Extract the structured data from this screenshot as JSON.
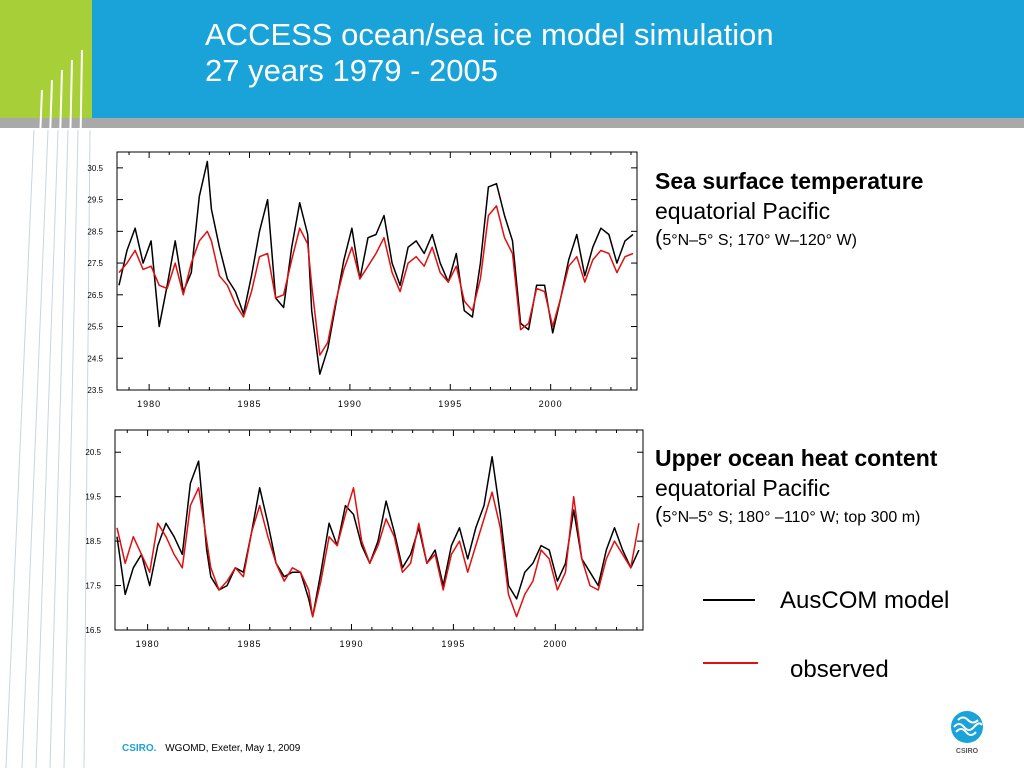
{
  "header": {
    "title_line1": "ACCESS ocean/sea ice model simulation",
    "title_line2": "27 years 1979 - 2005",
    "colors": {
      "blue": "#1aa3d8",
      "green": "#a6cf38"
    }
  },
  "panels": [
    {
      "title": "Sea surface temperature",
      "subtitle": "equatorial Pacific",
      "region_open": "(",
      "region": "5°N–5° S;  170° W–120° W",
      "region_close": ")"
    },
    {
      "title": "Upper ocean heat content",
      "subtitle": "equatorial Pacific",
      "region_open": "(",
      "region": "5°N–5° S;  180° –110° W; top 300 m)",
      "region_close": ""
    }
  ],
  "legend": {
    "model_label": "AusCOM model",
    "observed_label": "observed",
    "model_color": "#000000",
    "observed_color": "#e01010"
  },
  "footer": {
    "brand": "CSIRO.",
    "text": "WGOMD, Exeter, May 1, 2009"
  },
  "logo": {
    "text": "CSIRO",
    "icon": "csiro-logo-icon"
  },
  "chart_data": [
    {
      "type": "line",
      "title": "",
      "xlabel": "",
      "ylabel": "",
      "xlim": [
        1978.4,
        2004.3
      ],
      "ylim": [
        23.5,
        31.0
      ],
      "yticks": [
        23.5,
        24.5,
        25.5,
        26.5,
        27.5,
        28.5,
        29.5,
        30.5
      ],
      "ytick_labels": [
        "23.5",
        "24.5",
        "25.5",
        "26.5",
        "27.5",
        "28.5",
        "29.5",
        "30.5"
      ],
      "xticks": [
        1980,
        1985,
        1990,
        1995,
        2000
      ],
      "xtick_labels": [
        "1980",
        "1985",
        "1990",
        "1995",
        "2000"
      ],
      "grid": false,
      "series": [
        {
          "name": "AusCOM model",
          "color": "#000000",
          "x": [
            1978.5,
            1978.9,
            1979.3,
            1979.7,
            1980.1,
            1980.5,
            1980.9,
            1981.3,
            1981.7,
            1982.1,
            1982.5,
            1982.9,
            1983.1,
            1983.5,
            1983.9,
            1984.3,
            1984.7,
            1985.1,
            1985.5,
            1985.9,
            1986.3,
            1986.7,
            1987.1,
            1987.5,
            1987.9,
            1988.1,
            1988.5,
            1988.9,
            1989.3,
            1989.7,
            1990.1,
            1990.5,
            1990.9,
            1991.3,
            1991.7,
            1992.1,
            1992.5,
            1992.9,
            1993.3,
            1993.7,
            1994.1,
            1994.5,
            1994.9,
            1995.3,
            1995.7,
            1996.1,
            1996.5,
            1996.9,
            1997.3,
            1997.7,
            1998.1,
            1998.5,
            1998.9,
            1999.3,
            1999.7,
            2000.1,
            2000.5,
            2000.9,
            2001.3,
            2001.7,
            2002.1,
            2002.5,
            2002.9,
            2003.3,
            2003.7,
            2004.1
          ],
          "y": [
            26.8,
            27.9,
            28.6,
            27.5,
            28.2,
            25.5,
            26.8,
            28.2,
            26.6,
            27.2,
            29.6,
            30.7,
            29.2,
            28.0,
            27.0,
            26.6,
            25.9,
            27.1,
            28.5,
            29.5,
            26.4,
            26.1,
            28.0,
            29.4,
            28.4,
            26.0,
            24.0,
            24.8,
            26.2,
            27.6,
            28.6,
            27.0,
            28.3,
            28.4,
            29.0,
            27.5,
            26.8,
            28.0,
            28.2,
            27.8,
            28.4,
            27.5,
            26.9,
            27.8,
            26.0,
            25.8,
            27.5,
            29.9,
            30.0,
            29.0,
            28.2,
            25.6,
            25.4,
            26.8,
            26.8,
            25.3,
            26.4,
            27.6,
            28.4,
            27.1,
            28.0,
            28.6,
            28.4,
            27.5,
            28.2,
            28.4
          ]
        },
        {
          "name": "observed",
          "color": "#e01010",
          "x": [
            1978.5,
            1978.9,
            1979.3,
            1979.7,
            1980.1,
            1980.5,
            1980.9,
            1981.3,
            1981.7,
            1982.1,
            1982.5,
            1982.9,
            1983.1,
            1983.5,
            1983.9,
            1984.3,
            1984.7,
            1985.1,
            1985.5,
            1985.9,
            1986.3,
            1986.7,
            1987.1,
            1987.5,
            1987.9,
            1988.1,
            1988.5,
            1988.9,
            1989.3,
            1989.7,
            1990.1,
            1990.5,
            1990.9,
            1991.3,
            1991.7,
            1992.1,
            1992.5,
            1992.9,
            1993.3,
            1993.7,
            1994.1,
            1994.5,
            1994.9,
            1995.3,
            1995.7,
            1996.1,
            1996.5,
            1996.9,
            1997.3,
            1997.7,
            1998.1,
            1998.5,
            1998.9,
            1999.3,
            1999.7,
            2000.1,
            2000.5,
            2000.9,
            2001.3,
            2001.7,
            2002.1,
            2002.5,
            2002.9,
            2003.3,
            2003.7,
            2004.1
          ],
          "y": [
            27.2,
            27.5,
            27.9,
            27.3,
            27.4,
            26.8,
            26.7,
            27.5,
            26.5,
            27.5,
            28.2,
            28.5,
            28.2,
            27.1,
            26.8,
            26.2,
            25.8,
            26.6,
            27.7,
            27.8,
            26.4,
            26.5,
            27.6,
            28.6,
            28.1,
            26.8,
            24.6,
            25.0,
            26.3,
            27.3,
            28.0,
            27.0,
            27.4,
            27.8,
            28.3,
            27.2,
            26.6,
            27.5,
            27.7,
            27.4,
            28.0,
            27.2,
            26.9,
            27.4,
            26.3,
            26.0,
            27.0,
            29.0,
            29.3,
            28.3,
            27.8,
            25.4,
            25.6,
            26.7,
            26.6,
            25.5,
            26.4,
            27.4,
            27.7,
            26.9,
            27.6,
            27.9,
            27.8,
            27.2,
            27.7,
            27.8
          ]
        }
      ]
    },
    {
      "type": "line",
      "title": "",
      "xlabel": "",
      "ylabel": "",
      "xlim": [
        1978.4,
        2004.3
      ],
      "ylim": [
        16.5,
        21.0
      ],
      "yticks": [
        16.5,
        17.5,
        18.5,
        19.5,
        20.5
      ],
      "ytick_labels": [
        "16.5",
        "17.5",
        "18.5",
        "19.5",
        "20.5"
      ],
      "xticks": [
        1980,
        1985,
        1990,
        1995,
        2000
      ],
      "xtick_labels": [
        "1980",
        "1985",
        "1990",
        "1995",
        "2000"
      ],
      "grid": false,
      "series": [
        {
          "name": "AusCOM model",
          "color": "#000000",
          "x": [
            1978.5,
            1978.9,
            1979.3,
            1979.7,
            1980.1,
            1980.5,
            1980.9,
            1981.3,
            1981.7,
            1982.1,
            1982.5,
            1982.9,
            1983.1,
            1983.5,
            1983.9,
            1984.3,
            1984.7,
            1985.1,
            1985.5,
            1985.9,
            1986.3,
            1986.7,
            1987.1,
            1987.5,
            1987.9,
            1988.1,
            1988.5,
            1988.9,
            1989.3,
            1989.7,
            1990.1,
            1990.5,
            1990.9,
            1991.3,
            1991.7,
            1992.1,
            1992.5,
            1992.9,
            1993.3,
            1993.7,
            1994.1,
            1994.5,
            1994.9,
            1995.3,
            1995.7,
            1996.1,
            1996.5,
            1996.9,
            1997.3,
            1997.7,
            1998.1,
            1998.5,
            1998.9,
            1999.3,
            1999.7,
            2000.1,
            2000.5,
            2000.9,
            2001.3,
            2001.7,
            2002.1,
            2002.5,
            2002.9,
            2003.3,
            2003.7,
            2004.1
          ],
          "y": [
            18.6,
            17.3,
            17.9,
            18.2,
            17.5,
            18.4,
            18.9,
            18.6,
            18.2,
            19.8,
            20.3,
            18.3,
            17.7,
            17.4,
            17.5,
            17.9,
            17.8,
            18.7,
            19.7,
            18.9,
            18.0,
            17.7,
            17.8,
            17.8,
            17.2,
            16.8,
            17.8,
            18.9,
            18.4,
            19.3,
            19.1,
            18.4,
            18.0,
            18.5,
            19.4,
            18.7,
            17.9,
            18.2,
            18.8,
            18.0,
            18.3,
            17.5,
            18.4,
            18.8,
            18.1,
            18.8,
            19.3,
            20.4,
            19.1,
            17.5,
            17.2,
            17.8,
            18.0,
            18.4,
            18.3,
            17.6,
            18.0,
            19.2,
            18.1,
            17.8,
            17.5,
            18.3,
            18.8,
            18.3,
            17.9,
            18.3
          ]
        },
        {
          "name": "observed",
          "color": "#e01010",
          "x": [
            1978.5,
            1978.9,
            1979.3,
            1979.7,
            1980.1,
            1980.5,
            1980.9,
            1981.3,
            1981.7,
            1982.1,
            1982.5,
            1982.9,
            1983.1,
            1983.5,
            1983.9,
            1984.3,
            1984.7,
            1985.1,
            1985.5,
            1985.9,
            1986.3,
            1986.7,
            1987.1,
            1987.5,
            1987.9,
            1988.1,
            1988.5,
            1988.9,
            1989.3,
            1989.7,
            1990.1,
            1990.5,
            1990.9,
            1991.3,
            1991.7,
            1992.1,
            1992.5,
            1992.9,
            1993.3,
            1993.7,
            1994.1,
            1994.5,
            1994.9,
            1995.3,
            1995.7,
            1996.1,
            1996.5,
            1996.9,
            1997.3,
            1997.7,
            1998.1,
            1998.5,
            1998.9,
            1999.3,
            1999.7,
            2000.1,
            2000.5,
            2000.9,
            2001.3,
            2001.7,
            2002.1,
            2002.5,
            2002.9,
            2003.3,
            2003.7,
            2004.1
          ],
          "y": [
            18.8,
            18.0,
            18.6,
            18.2,
            17.8,
            18.9,
            18.6,
            18.2,
            17.9,
            19.3,
            19.7,
            18.5,
            17.9,
            17.4,
            17.6,
            17.9,
            17.7,
            18.7,
            19.3,
            18.6,
            18.0,
            17.6,
            17.9,
            17.8,
            17.4,
            16.8,
            17.6,
            18.6,
            18.4,
            19.1,
            19.7,
            18.5,
            18.0,
            18.4,
            19.0,
            18.6,
            17.8,
            18.0,
            18.9,
            18.0,
            18.2,
            17.4,
            18.2,
            18.5,
            17.8,
            18.4,
            19.0,
            19.6,
            18.8,
            17.3,
            16.8,
            17.3,
            17.6,
            18.3,
            18.1,
            17.4,
            17.8,
            19.5,
            18.1,
            17.5,
            17.4,
            18.1,
            18.5,
            18.2,
            17.9,
            18.9
          ]
        }
      ]
    }
  ]
}
